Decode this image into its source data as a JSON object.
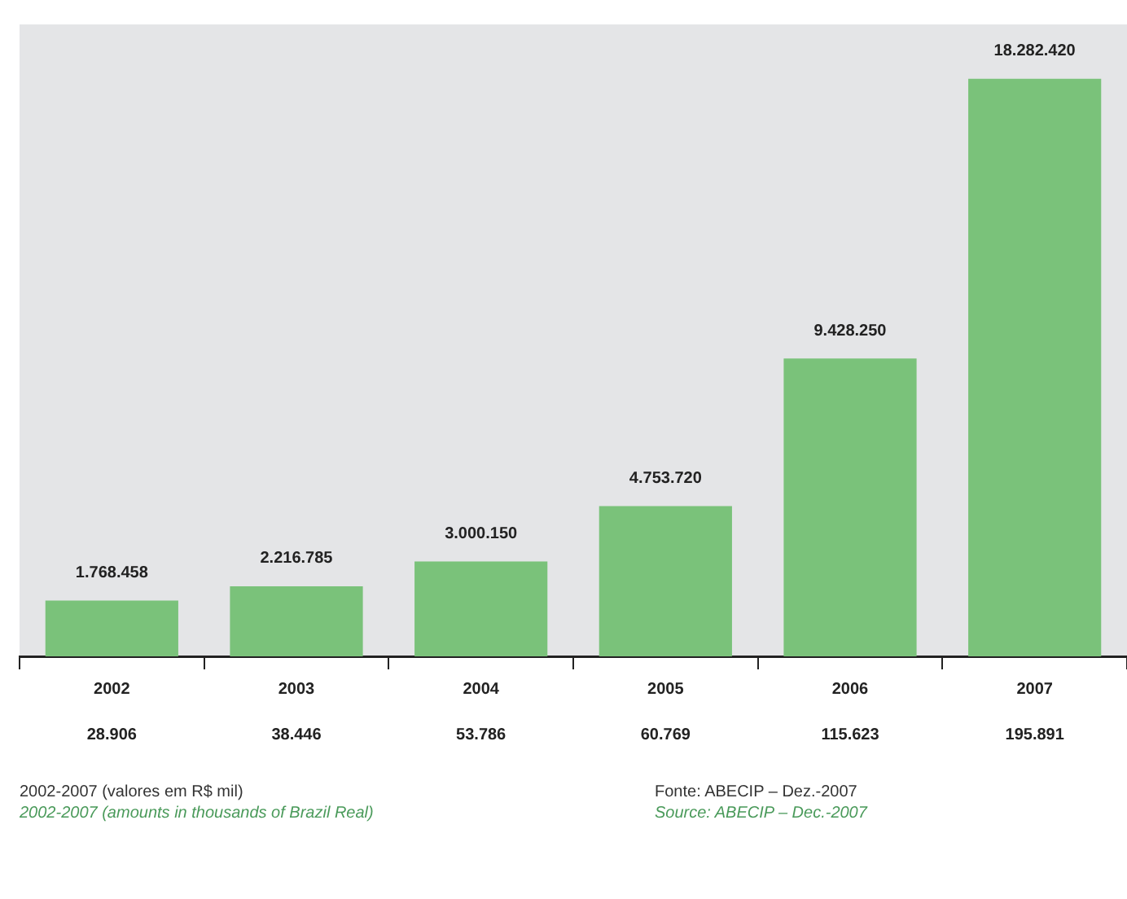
{
  "chart_data": {
    "type": "bar",
    "categories": [
      "2002",
      "2003",
      "2004",
      "2005",
      "2006",
      "2007"
    ],
    "values": [
      1768458,
      2216785,
      3000150,
      4753720,
      9428250,
      18282420
    ],
    "value_labels": [
      "1.768.458",
      "2.216.785",
      "3.000.150",
      "4.753.720",
      "9.428.250",
      "18.282.420"
    ],
    "color": "#7ac27a",
    "grid": false,
    "legend": false,
    "annotations": [
      "28.906",
      "38.446",
      "53.786",
      "60.769",
      "115.623",
      "195.891",
      "2002-2007 (valores em R$ mil)",
      "2002-2007 (amounts in thousands of Brazil Real)",
      "Fonte: ABECIP – Dez.-2007",
      "Source: ABECIP – Dec.-2007"
    ]
  }
}
